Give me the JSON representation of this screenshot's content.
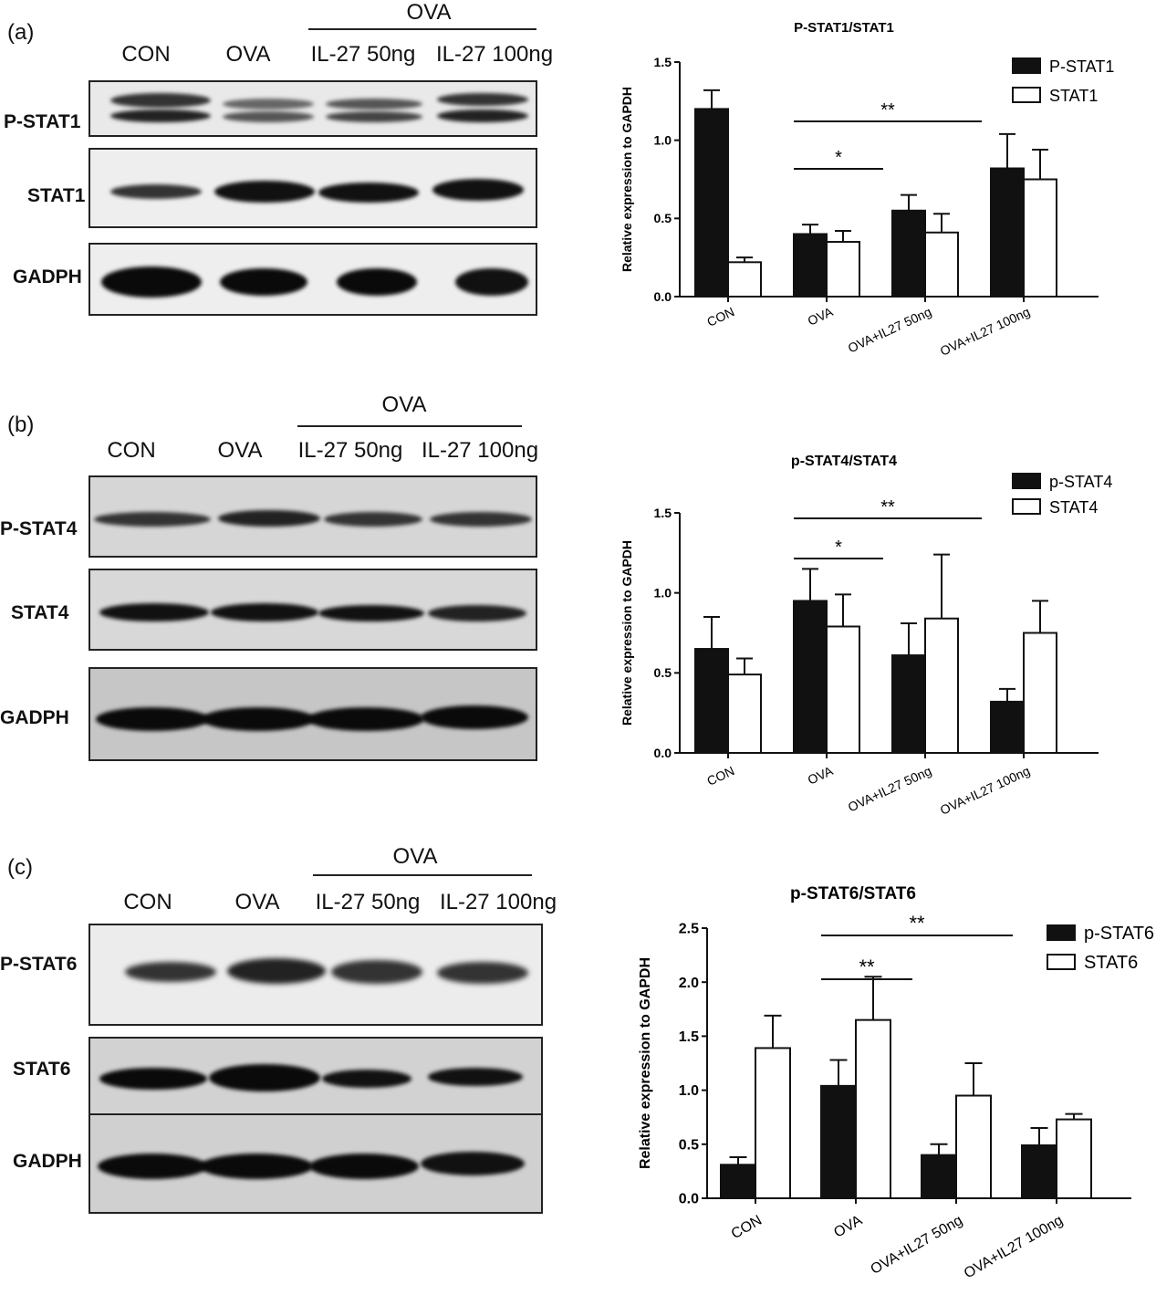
{
  "panels": [
    {
      "id": "a",
      "label": "(a)",
      "blot": {
        "lanes": [
          "CON",
          "OVA",
          "IL-27 50ng",
          "IL-27 100ng"
        ],
        "group_label": "OVA",
        "rows": [
          "P-STAT1",
          "STAT1",
          "GADPH"
        ]
      }
    },
    {
      "id": "b",
      "label": "(b)",
      "blot": {
        "lanes": [
          "CON",
          "OVA",
          "IL-27 50ng",
          "IL-27 100ng"
        ],
        "group_label": "OVA",
        "rows": [
          "P-STAT4",
          "STAT4",
          "GADPH"
        ]
      }
    },
    {
      "id": "c",
      "label": "(c)",
      "blot": {
        "lanes": [
          "CON",
          "OVA",
          "IL-27 50ng",
          "IL-27 100ng"
        ],
        "group_label": "OVA",
        "rows": [
          "P-STAT6",
          "STAT6",
          "GADPH"
        ]
      }
    }
  ],
  "chart_data": [
    {
      "type": "bar",
      "title": "P-STAT1/STAT1",
      "ylabel": "Relative expression to GAPDH",
      "xlabel": "",
      "categories": [
        "CON",
        "OVA",
        "OVA+IL27 50ng",
        "OVA+IL27 100ng"
      ],
      "ylim": [
        0,
        1.5
      ],
      "yticks": [
        "0.0",
        "0.5",
        "1.0",
        "1.5"
      ],
      "series": [
        {
          "name": "P-STAT1",
          "fill": "#111111",
          "values": [
            1.2,
            0.4,
            0.55,
            0.82
          ],
          "errors": [
            0.12,
            0.06,
            0.1,
            0.22
          ]
        },
        {
          "name": "STAT1",
          "fill": "#ffffff",
          "values": [
            0.22,
            0.35,
            0.41,
            0.75
          ],
          "errors": [
            0.03,
            0.07,
            0.12,
            0.19
          ]
        }
      ],
      "significance": [
        {
          "from": 1,
          "to": 2,
          "label": "*"
        },
        {
          "from": 1,
          "to": 3,
          "label": "**"
        }
      ],
      "legend": "top-right",
      "grid": false
    },
    {
      "type": "bar",
      "title": "p-STAT4/STAT4",
      "ylabel": "Relative expression to GAPDH",
      "xlabel": "",
      "categories": [
        "CON",
        "OVA",
        "OVA+IL27 50ng",
        "OVA+IL27 100ng"
      ],
      "ylim": [
        0,
        1.5
      ],
      "yticks": [
        "0.0",
        "0.5",
        "1.0",
        "1.5"
      ],
      "series": [
        {
          "name": "p-STAT4",
          "fill": "#111111",
          "values": [
            0.65,
            0.95,
            0.61,
            0.32
          ],
          "errors": [
            0.2,
            0.2,
            0.2,
            0.08
          ]
        },
        {
          "name": "STAT4",
          "fill": "#ffffff",
          "values": [
            0.49,
            0.79,
            0.84,
            0.75
          ],
          "errors": [
            0.1,
            0.2,
            0.4,
            0.2
          ]
        }
      ],
      "significance": [
        {
          "from": 1,
          "to": 2,
          "label": "*"
        },
        {
          "from": 1,
          "to": 3,
          "label": "**"
        }
      ],
      "legend": "top-right",
      "grid": false
    },
    {
      "type": "bar",
      "title": "p-STAT6/STAT6",
      "ylabel": "Relative expression to GAPDH",
      "xlabel": "",
      "categories": [
        "CON",
        "OVA",
        "OVA+IL27 50ng",
        "OVA+IL27 100ng"
      ],
      "ylim": [
        0,
        2.5
      ],
      "yticks": [
        "0.0",
        "0.5",
        "1.0",
        "1.5",
        "2.0",
        "2.5"
      ],
      "series": [
        {
          "name": "p-STAT6",
          "fill": "#111111",
          "values": [
            0.31,
            1.04,
            0.4,
            0.49
          ],
          "errors": [
            0.07,
            0.24,
            0.1,
            0.16
          ]
        },
        {
          "name": "STAT6",
          "fill": "#ffffff",
          "values": [
            1.39,
            1.65,
            0.95,
            0.73
          ],
          "errors": [
            0.3,
            0.4,
            0.3,
            0.05
          ]
        }
      ],
      "significance": [
        {
          "from": 1,
          "to": 2,
          "label": "**"
        },
        {
          "from": 1,
          "to": 3,
          "label": "**"
        }
      ],
      "legend": "top-right",
      "grid": false
    }
  ]
}
